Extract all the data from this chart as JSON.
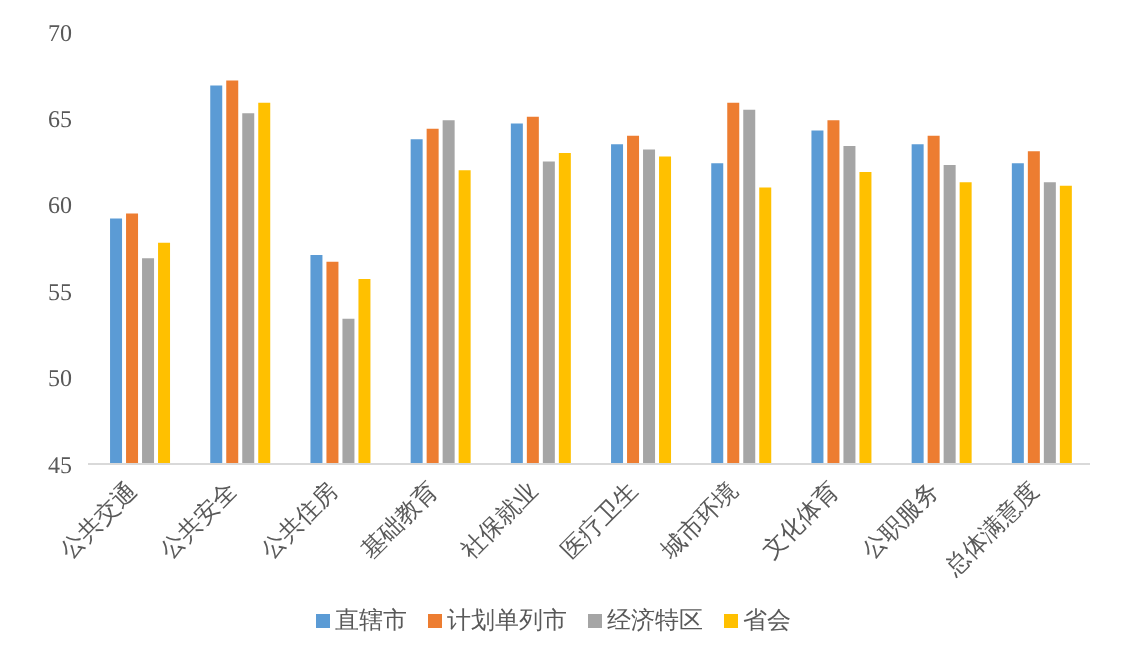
{
  "chart_data": {
    "type": "bar",
    "categories": [
      "公共交通",
      "公共安全",
      "公共住房",
      "基础教育",
      "社保就业",
      "医疗卫生",
      "城市环境",
      "文化体育",
      "公职服务",
      "总体满意度"
    ],
    "series": [
      {
        "name": "直辖市",
        "color": "#5b9bd5",
        "values": [
          59.2,
          66.9,
          57.1,
          63.8,
          64.7,
          63.5,
          62.4,
          64.3,
          63.5,
          62.4
        ]
      },
      {
        "name": "计划单列市",
        "color": "#ed7d31",
        "values": [
          59.5,
          67.2,
          56.7,
          64.4,
          65.1,
          64.0,
          65.9,
          64.9,
          64.0,
          63.1
        ]
      },
      {
        "name": "经济特区",
        "color": "#a5a5a5",
        "values": [
          56.9,
          65.3,
          53.4,
          64.9,
          62.5,
          63.2,
          65.5,
          63.4,
          62.3,
          61.3
        ]
      },
      {
        "name": "省会",
        "color": "#ffc000",
        "values": [
          57.8,
          65.9,
          55.7,
          62.0,
          63.0,
          62.8,
          61.0,
          61.9,
          61.3,
          61.1
        ]
      }
    ],
    "ylim": [
      45,
      70
    ],
    "yticks": [
      45,
      50,
      55,
      60,
      65,
      70
    ],
    "grid": false,
    "legend": "bottom"
  }
}
